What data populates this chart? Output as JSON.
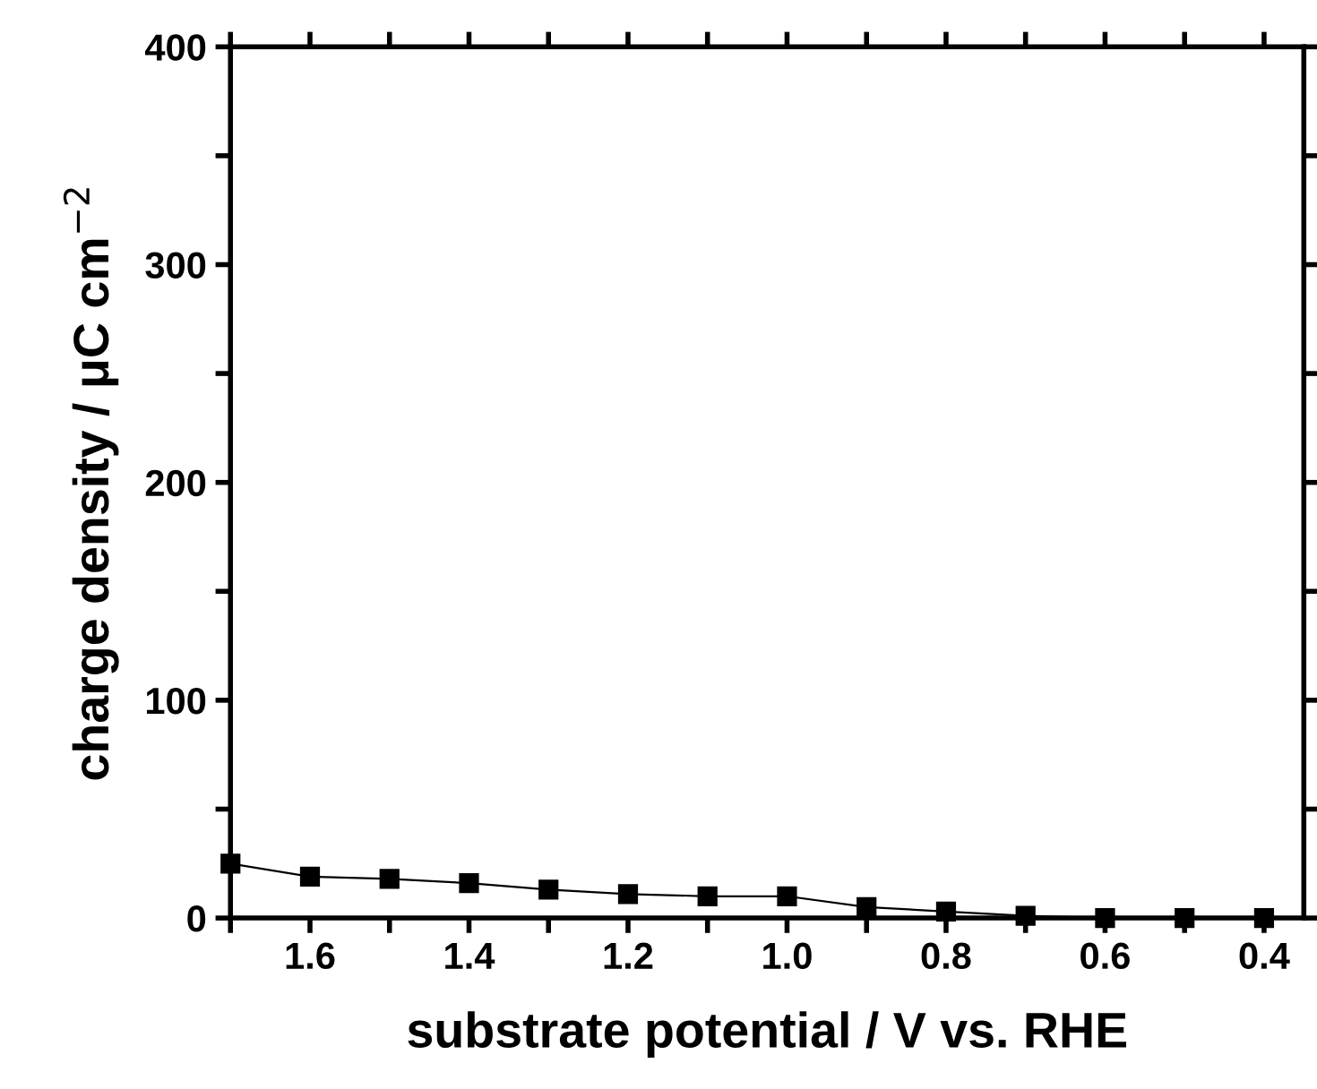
{
  "chart_data": {
    "type": "line",
    "xlabel": "substrate potential / V vs. RHE",
    "ylabel": "charge density / μC cm$^{−2}$",
    "x": [
      1.7,
      1.6,
      1.5,
      1.4,
      1.3,
      1.2,
      1.1,
      1.0,
      0.9,
      0.8,
      0.7,
      0.6,
      0.5,
      0.4
    ],
    "series": [
      {
        "color": "#000000",
        "values": [
          25,
          19,
          18,
          16,
          13,
          11,
          10,
          10,
          5,
          3,
          1,
          0,
          0,
          0
        ]
      }
    ],
    "marker": "square",
    "line_style": "solid",
    "grid": false,
    "legend": false,
    "xlim": [
      1.7,
      0.35
    ],
    "ylim": [
      0,
      400
    ],
    "xticks": [
      {
        "value": 1.7,
        "label": null
      },
      1.6,
      {
        "value": 1.5,
        "label": null
      },
      1.4,
      {
        "value": 1.3,
        "label": null
      },
      1.2,
      {
        "value": 1.1,
        "label": null
      },
      {
        "value": 1.0,
        "label": "1.0"
      },
      {
        "value": 0.9,
        "label": null
      },
      0.8,
      {
        "value": 0.7,
        "label": null
      },
      0.6,
      {
        "value": 0.5,
        "label": null
      },
      0.4
    ],
    "yticks": [
      0,
      {
        "value": 50,
        "label": null
      },
      100,
      {
        "value": 150,
        "label": null
      },
      200,
      {
        "value": 250,
        "label": null
      },
      300,
      {
        "value": 350,
        "label": null
      },
      400
    ]
  }
}
